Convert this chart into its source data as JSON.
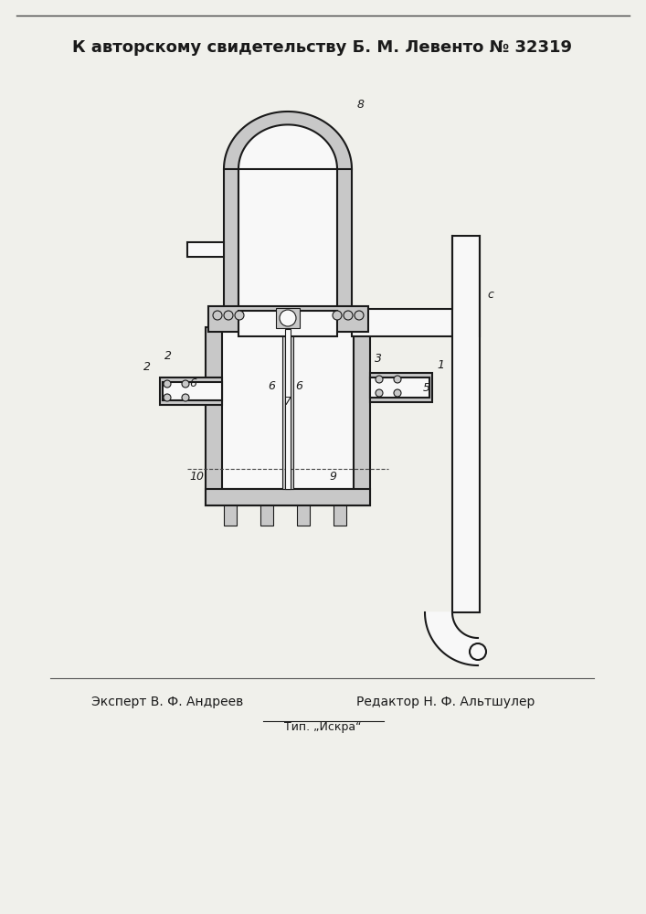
{
  "title": "К авторскому свидетельству Б. М. Левенто № 32319",
  "expert_text": "Эксперт В. Ф. Андреев",
  "editor_text": "Редактор Н. Ф. Альтшулер",
  "publisher_text": "Тип. „Искра“",
  "bg_color": "#f0f0eb",
  "line_color": "#1a1a1a",
  "fill_light": "#c8c8c8",
  "fill_dark": "#888888",
  "fill_white": "#f8f8f8",
  "title_fontsize": 13,
  "label_fontsize": 9
}
